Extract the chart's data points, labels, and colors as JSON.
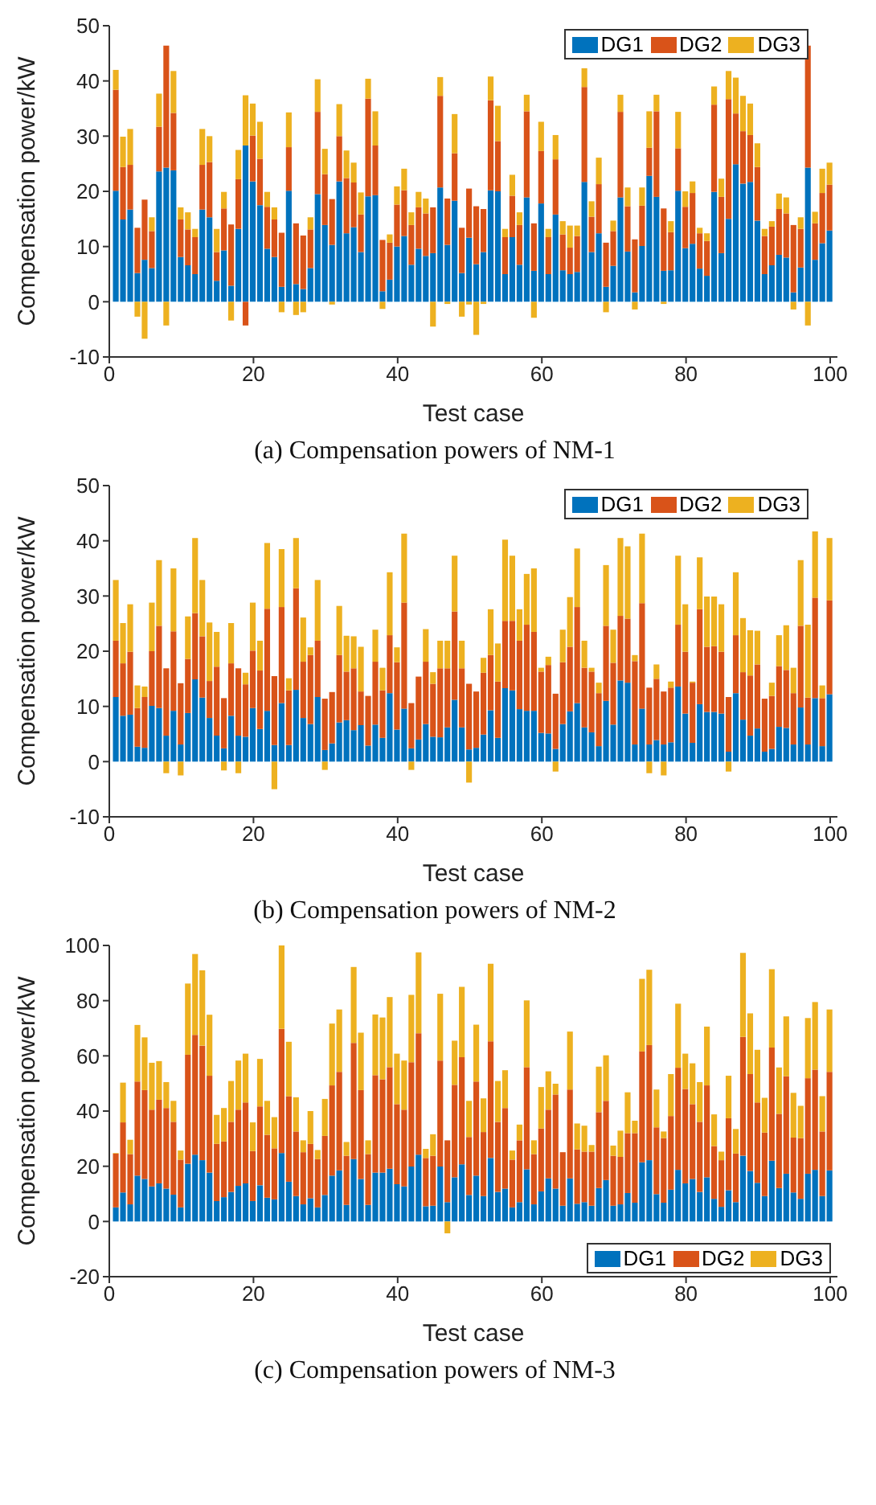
{
  "chart_data": [
    {
      "type": "bar",
      "title": "(a) Compensation powers of NM-1",
      "xlabel": "Test case",
      "ylabel": "Compensation power/kW",
      "stacked": true,
      "legend": "top right",
      "x": [
        1,
        2,
        3,
        4,
        5,
        6,
        7,
        8,
        9,
        10,
        11,
        12,
        13,
        14,
        15,
        16,
        17,
        18,
        19,
        20,
        21,
        22,
        23,
        24,
        25,
        26,
        27,
        28,
        29,
        30,
        31,
        32,
        33,
        34,
        35,
        36,
        37,
        38,
        39,
        40,
        41,
        42,
        43,
        44,
        45,
        46,
        47,
        48,
        49,
        50,
        51,
        52,
        53,
        54,
        55,
        56,
        57,
        58,
        59,
        60,
        61,
        62,
        63,
        64,
        65,
        66,
        67,
        68,
        69,
        70,
        71,
        72,
        73,
        74,
        75,
        76,
        77,
        78,
        79,
        80,
        81,
        82,
        83,
        84,
        85,
        86,
        87,
        88,
        89,
        90,
        91,
        92,
        93,
        94,
        95,
        96,
        97,
        98,
        99,
        100
      ],
      "xlim": [
        0,
        101
      ],
      "xticks": [
        0,
        20,
        40,
        60,
        80,
        100
      ],
      "ylim": [
        -10,
        50
      ],
      "yticks": [
        -10,
        0,
        10,
        20,
        30,
        40,
        50
      ],
      "series": [
        {
          "name": "DG1",
          "color": "#0072bd",
          "values": [
            20.1,
            14.9,
            16.7,
            5.2,
            7.6,
            6.1,
            23.6,
            24.3,
            23.8,
            8.1,
            6.6,
            5.0,
            16.7,
            15.3,
            3.8,
            9.3,
            2.9,
            13.2,
            28.3,
            21.8,
            17.5,
            9.6,
            8.1,
            2.7,
            20.1,
            3.2,
            2.3,
            6.1,
            19.5,
            13.9,
            10.3,
            21.8,
            12.4,
            13.5,
            9.0,
            19.1,
            19.3,
            1.9,
            4.0,
            10.0,
            11.9,
            6.7,
            9.6,
            8.3,
            8.8,
            20.7,
            10.3,
            18.3,
            5.2,
            11.6,
            6.8,
            9.0,
            20.2,
            20.0,
            5.0,
            11.7,
            6.7,
            18.9,
            5.6,
            17.8,
            5.0,
            15.8,
            5.7,
            5.0,
            5.4,
            21.7,
            9.0,
            12.4,
            2.7,
            6.5,
            18.9,
            9.1,
            1.7,
            10.1,
            22.8,
            19.0,
            5.6,
            5.7,
            20.1,
            9.7,
            10.5,
            6.0,
            4.7,
            19.9,
            8.8,
            15.0,
            24.9,
            21.4,
            21.7,
            14.7,
            5.0,
            6.6,
            8.5,
            8.0,
            1.7,
            6.2,
            24.3,
            7.6,
            10.6,
            12.9
          ]
        },
        {
          "name": "DG2",
          "color": "#d95319",
          "values": [
            18.3,
            9.5,
            8.1,
            8.2,
            10.9,
            6.7,
            8.1,
            22.1,
            10.4,
            6.8,
            6.5,
            6.7,
            8.1,
            10.0,
            5.2,
            7.6,
            11.1,
            9.0,
            -4.3,
            8.3,
            8.4,
            7.6,
            6.8,
            9.8,
            7.9,
            11.0,
            9.7,
            7.0,
            14.9,
            9.2,
            8.3,
            8.2,
            10.0,
            8.1,
            6.8,
            17.7,
            9.0,
            9.3,
            6.7,
            7.6,
            8.3,
            7.2,
            7.5,
            7.7,
            8.3,
            16.6,
            8.4,
            8.6,
            8.2,
            8.9,
            10.5,
            7.8,
            16.3,
            9.1,
            6.7,
            7.5,
            7.2,
            15.6,
            8.6,
            9.5,
            6.7,
            10.0,
            6.5,
            4.8,
            6.5,
            17.2,
            6.4,
            8.9,
            8.0,
            6.3,
            15.5,
            8.2,
            9.6,
            7.3,
            5.1,
            15.5,
            11.3,
            6.9,
            7.7,
            7.5,
            9.2,
            6.4,
            6.3,
            15.8,
            10.2,
            21.7,
            9.2,
            9.5,
            8.5,
            9.7,
            6.9,
            7.0,
            8.3,
            8.0,
            12.2,
            7.0,
            22.1,
            6.6,
            9.1,
            8.3
          ]
        },
        {
          "name": "DG3",
          "color": "#edb120",
          "values": [
            3.6,
            5.5,
            6.5,
            -2.7,
            -6.7,
            2.5,
            6.0,
            -4.3,
            7.6,
            2.2,
            3.1,
            1.5,
            6.5,
            4.7,
            4.2,
            3.0,
            -3.4,
            5.3,
            9.1,
            5.8,
            6.7,
            2.7,
            2.2,
            -1.9,
            6.3,
            -2.4,
            -1.9,
            2.2,
            5.9,
            4.6,
            -0.5,
            5.8,
            5.0,
            3.6,
            4.0,
            3.6,
            6.2,
            -1.3,
            1.5,
            3.3,
            3.9,
            2.3,
            2.8,
            2.7,
            -4.5,
            3.4,
            -0.4,
            7.1,
            -2.7,
            -0.5,
            -6.0,
            -0.4,
            4.3,
            6.4,
            1.5,
            3.8,
            2.3,
            3.0,
            -2.9,
            5.3,
            1.5,
            4.4,
            2.4,
            4.0,
            1.9,
            3.4,
            2.8,
            4.8,
            -1.9,
            1.9,
            3.1,
            3.4,
            -1.4,
            3.3,
            6.6,
            3.0,
            -0.4,
            2.0,
            6.6,
            2.8,
            2.1,
            1.0,
            1.4,
            3.3,
            3.3,
            5.1,
            6.5,
            6.4,
            5.7,
            4.3,
            1.3,
            1.0,
            2.8,
            2.9,
            -1.4,
            2.1,
            -4.3,
            2.1,
            4.4,
            4.0
          ]
        }
      ]
    },
    {
      "type": "bar",
      "title": "(b) Compensation powers of NM-2",
      "xlabel": "Test case",
      "ylabel": "Compensation power/kW",
      "stacked": true,
      "legend": "top right",
      "x": [
        1,
        2,
        3,
        4,
        5,
        6,
        7,
        8,
        9,
        10,
        11,
        12,
        13,
        14,
        15,
        16,
        17,
        18,
        19,
        20,
        21,
        22,
        23,
        24,
        25,
        26,
        27,
        28,
        29,
        30,
        31,
        32,
        33,
        34,
        35,
        36,
        37,
        38,
        39,
        40,
        41,
        42,
        43,
        44,
        45,
        46,
        47,
        48,
        49,
        50,
        51,
        52,
        53,
        54,
        55,
        56,
        57,
        58,
        59,
        60,
        61,
        62,
        63,
        64,
        65,
        66,
        67,
        68,
        69,
        70,
        71,
        72,
        73,
        74,
        75,
        76,
        77,
        78,
        79,
        80,
        81,
        82,
        83,
        84,
        85,
        86,
        87,
        88,
        89,
        90,
        91,
        92,
        93,
        94,
        95,
        96,
        97,
        98,
        99,
        100
      ],
      "xlim": [
        0,
        101
      ],
      "xticks": [
        0,
        20,
        40,
        60,
        80,
        100
      ],
      "ylim": [
        -10,
        50
      ],
      "yticks": [
        -10,
        0,
        10,
        20,
        30,
        40,
        50
      ],
      "series": [
        {
          "name": "DG1",
          "color": "#0072bd",
          "values": [
            11.7,
            8.3,
            8.5,
            2.7,
            2.5,
            10.1,
            9.7,
            4.7,
            9.2,
            3.1,
            8.8,
            14.9,
            11.6,
            7.9,
            4.7,
            2.4,
            8.3,
            4.7,
            4.5,
            9.7,
            5.9,
            9.2,
            3.0,
            10.6,
            3.0,
            13.0,
            7.9,
            6.8,
            11.7,
            2.1,
            3.3,
            7.1,
            7.5,
            5.7,
            6.6,
            2.9,
            6.7,
            4.3,
            12.4,
            5.8,
            9.6,
            2.4,
            4.0,
            6.8,
            4.5,
            4.4,
            6.2,
            11.2,
            6.2,
            2.2,
            2.5,
            4.9,
            9.3,
            4.3,
            13.3,
            12.9,
            9.5,
            9.2,
            9.2,
            5.2,
            5.1,
            2.3,
            6.8,
            9.1,
            10.6,
            6.2,
            5.3,
            2.8,
            11.0,
            6.7,
            14.7,
            14.3,
            3.1,
            9.6,
            3.1,
            3.9,
            3.1,
            3.5,
            13.6,
            8.7,
            3.4,
            10.4,
            9.0,
            9.0,
            8.7,
            1.8,
            12.4,
            7.6,
            4.7,
            6.0,
            1.8,
            2.3,
            6.3,
            6.1,
            3.1,
            9.8,
            3.1,
            11.5,
            2.8,
            12.2
          ]
        },
        {
          "name": "DG2",
          "color": "#d95319",
          "values": [
            10.2,
            9.5,
            11.4,
            7.0,
            9.2,
            9.9,
            14.9,
            12.2,
            14.4,
            11.1,
            9.8,
            12.0,
            11.1,
            6.7,
            12.5,
            9.1,
            9.5,
            12.2,
            9.5,
            10.4,
            10.6,
            18.5,
            12.5,
            17.4,
            9.9,
            18.4,
            10.2,
            12.5,
            10.2,
            9.3,
            9.3,
            12.2,
            8.8,
            11.2,
            6.1,
            9.0,
            11.4,
            8.6,
            10.5,
            12.2,
            19.2,
            8.2,
            11.4,
            11.3,
            9.6,
            12.5,
            10.7,
            16.0,
            10.7,
            11.9,
            10.2,
            11.2,
            10.0,
            10.2,
            12.2,
            12.6,
            12.4,
            15.6,
            14.3,
            11.1,
            12.4,
            10.0,
            11.2,
            11.7,
            17.4,
            10.8,
            11.0,
            9.6,
            13.6,
            11.2,
            11.7,
            11.6,
            15.1,
            19.1,
            10.3,
            11.1,
            9.6,
            9.9,
            11.2,
            11.2,
            10.9,
            17.2,
            11.8,
            11.9,
            11.2,
            9.9,
            10.5,
            8.6,
            10.9,
            11.6,
            9.6,
            9.6,
            11.0,
            10.5,
            9.3,
            14.8,
            8.5,
            18.2,
            8.7,
            17.0
          ]
        },
        {
          "name": "DG3",
          "color": "#edb120",
          "values": [
            11.0,
            7.3,
            8.6,
            4.1,
            1.9,
            8.8,
            11.9,
            -2.1,
            11.4,
            -2.5,
            7.7,
            13.6,
            10.2,
            10.6,
            6.3,
            -1.6,
            7.3,
            -2.1,
            2.1,
            8.7,
            5.4,
            11.9,
            -5.0,
            10.5,
            2.2,
            9.1,
            8.0,
            1.4,
            11.0,
            -1.5,
            0,
            8.9,
            6.5,
            5.8,
            8.1,
            0,
            5.8,
            4.1,
            11.4,
            2.7,
            12.5,
            -1.5,
            0,
            5.9,
            2.1,
            5.0,
            5.0,
            10.1,
            5.0,
            -3.8,
            0,
            2.7,
            8.3,
            6.9,
            14.7,
            11.8,
            5.7,
            9.2,
            11.5,
            0.7,
            1.5,
            -1.8,
            5.9,
            9.0,
            10.6,
            4.9,
            0.7,
            1.9,
            11.0,
            6.0,
            14.1,
            13.1,
            1.1,
            12.6,
            -2.1,
            2.6,
            -2.5,
            1.1,
            12.5,
            8.6,
            0.2,
            9.4,
            9.1,
            9.0,
            8.6,
            -1.8,
            11.4,
            9.8,
            8.2,
            6.1,
            0,
            2.4,
            5.6,
            8.1,
            4.6,
            11.9,
            13.2,
            12.0,
            2.3,
            11.3
          ]
        }
      ]
    },
    {
      "type": "bar",
      "title": "(c) Compensation powers of NM-3",
      "xlabel": "Test case",
      "ylabel": "Compensation power/kW",
      "stacked": true,
      "legend": "bottom right",
      "x": [
        1,
        2,
        3,
        4,
        5,
        6,
        7,
        8,
        9,
        10,
        11,
        12,
        13,
        14,
        15,
        16,
        17,
        18,
        19,
        20,
        21,
        22,
        23,
        24,
        25,
        26,
        27,
        28,
        29,
        30,
        31,
        32,
        33,
        34,
        35,
        36,
        37,
        38,
        39,
        40,
        41,
        42,
        43,
        44,
        45,
        46,
        47,
        48,
        49,
        50,
        51,
        52,
        53,
        54,
        55,
        56,
        57,
        58,
        59,
        60,
        61,
        62,
        63,
        64,
        65,
        66,
        67,
        68,
        69,
        70,
        71,
        72,
        73,
        74,
        75,
        76,
        77,
        78,
        79,
        80,
        81,
        82,
        83,
        84,
        85,
        86,
        87,
        88,
        89,
        90,
        91,
        92,
        93,
        94,
        95,
        96,
        97,
        98,
        99,
        100
      ],
      "xlim": [
        0,
        101
      ],
      "xticks": [
        0,
        20,
        40,
        60,
        80,
        100
      ],
      "ylim": [
        -20,
        100
      ],
      "yticks": [
        -20,
        0,
        20,
        40,
        60,
        80,
        100
      ],
      "series": [
        {
          "name": "DG1",
          "color": "#0072bd",
          "values": [
            5.1,
            10.5,
            6.2,
            16.6,
            15.4,
            12.7,
            13.8,
            11.9,
            9.7,
            5.1,
            20.9,
            24.2,
            22.2,
            17.7,
            7.4,
            8.8,
            10.7,
            12.9,
            13.8,
            7.4,
            13.1,
            8.6,
            8.0,
            24.8,
            14.4,
            9.2,
            6.2,
            8.4,
            5.1,
            9.6,
            16.6,
            18.5,
            6.0,
            22.6,
            15.4,
            6.0,
            17.7,
            17.7,
            19.1,
            13.5,
            12.7,
            19.9,
            24.2,
            5.5,
            5.7,
            19.9,
            7.0,
            16.0,
            20.7,
            9.6,
            16.6,
            9.2,
            23.0,
            10.7,
            11.9,
            5.1,
            7.0,
            18.9,
            6.2,
            10.9,
            15.6,
            11.9,
            5.7,
            15.6,
            6.4,
            7.0,
            5.7,
            12.1,
            15.0,
            5.7,
            6.2,
            10.3,
            6.8,
            21.4,
            22.2,
            9.9,
            6.8,
            11.5,
            18.7,
            13.8,
            15.4,
            10.7,
            16.0,
            8.2,
            5.3,
            11.3,
            7.0,
            23.8,
            18.3,
            14.0,
            9.2,
            22.0,
            12.1,
            17.3,
            10.5,
            8.2,
            17.3,
            18.7,
            9.2,
            18.5
          ]
        },
        {
          "name": "DG2",
          "color": "#d95319",
          "values": [
            19.5,
            25.4,
            18.2,
            34.1,
            32.2,
            27.8,
            30.3,
            29.2,
            26.4,
            17.3,
            39.5,
            43.4,
            41.5,
            35.1,
            20.7,
            20.2,
            25.4,
            27.6,
            29.3,
            18.1,
            28.6,
            22.8,
            18.5,
            45.0,
            31.0,
            23.4,
            18.9,
            19.7,
            17.5,
            21.4,
            32.7,
            35.7,
            17.8,
            42.1,
            32.2,
            18.4,
            35.3,
            33.8,
            36.8,
            29.0,
            27.8,
            37.8,
            44.0,
            17.5,
            18.1,
            38.4,
            22.4,
            33.5,
            38.8,
            21.0,
            34.1,
            23.2,
            42.3,
            25.4,
            29.2,
            17.3,
            22.4,
            37.0,
            18.2,
            22.8,
            24.9,
            34.1,
            19.4,
            32.2,
            19.7,
            18.3,
            19.6,
            27.5,
            28.7,
            18.1,
            17.2,
            21.7,
            25.2,
            40.2,
            41.7,
            24.2,
            23.4,
            26.7,
            37.0,
            34.2,
            27.1,
            25.4,
            33.3,
            19.1,
            16.9,
            26.1,
            17.6,
            43.1,
            35.1,
            29.1,
            23.0,
            41.0,
            26.9,
            35.3,
            19.9,
            22.0,
            34.6,
            36.3,
            23.4,
            35.7
          ]
        },
        {
          "name": "DG3",
          "color": "#edb120",
          "values": [
            0.2,
            14.4,
            5.2,
            20.5,
            19.1,
            17.0,
            14.0,
            9.4,
            7.6,
            3.3,
            25.8,
            29.3,
            27.3,
            22.1,
            10.5,
            12.1,
            14.8,
            17.8,
            17.7,
            10.4,
            17.2,
            12.3,
            11.3,
            30.2,
            19.7,
            12.4,
            4.3,
            11.9,
            3.3,
            13.4,
            22.4,
            22.6,
            5.0,
            27.5,
            20.8,
            5.0,
            22.0,
            22.4,
            25.4,
            18.3,
            17.8,
            24.4,
            29.3,
            3.3,
            7.8,
            24.2,
            -4.3,
            16.0,
            25.5,
            13.1,
            20.6,
            12.2,
            28.1,
            14.8,
            13.7,
            3.3,
            5.7,
            24.2,
            5.0,
            15.0,
            13.9,
            3.9,
            0,
            21.0,
            9.4,
            9.4,
            2.4,
            16.5,
            16.5,
            3.7,
            9.5,
            14.8,
            4.5,
            26.3,
            27.3,
            13.7,
            2.4,
            15.2,
            23.2,
            12.8,
            14.8,
            14.4,
            21.3,
            11.5,
            3.1,
            15.4,
            8.9,
            30.4,
            22.0,
            19.1,
            12.6,
            28.4,
            16.8,
            21.7,
            16.2,
            11.7,
            21.8,
            24.5,
            12.8,
            22.6
          ]
        }
      ]
    }
  ]
}
